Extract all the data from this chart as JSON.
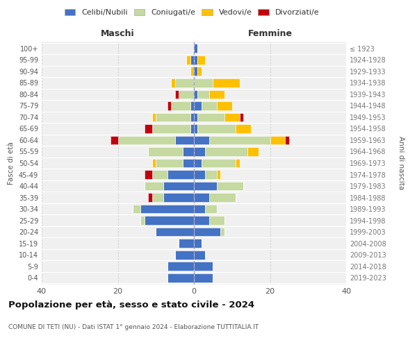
{
  "age_groups": [
    "100+",
    "95-99",
    "90-94",
    "85-89",
    "80-84",
    "75-79",
    "70-74",
    "65-69",
    "60-64",
    "55-59",
    "50-54",
    "45-49",
    "40-44",
    "35-39",
    "30-34",
    "25-29",
    "20-24",
    "15-19",
    "10-14",
    "5-9",
    "0-4"
  ],
  "birth_years": [
    "≤ 1923",
    "1924-1928",
    "1929-1933",
    "1934-1938",
    "1939-1943",
    "1944-1948",
    "1949-1953",
    "1954-1958",
    "1959-1963",
    "1964-1968",
    "1969-1973",
    "1974-1978",
    "1979-1983",
    "1984-1988",
    "1989-1993",
    "1994-1998",
    "1999-2003",
    "2004-2008",
    "2009-2013",
    "2014-2018",
    "2019-2023"
  ],
  "males": {
    "celibe": [
      0,
      1,
      0,
      0,
      0,
      1,
      1,
      1,
      5,
      3,
      3,
      7,
      8,
      8,
      14,
      13,
      10,
      4,
      5,
      7,
      7
    ],
    "coniugato": [
      0,
      0,
      0,
      5,
      4,
      5,
      9,
      10,
      15,
      9,
      7,
      4,
      5,
      3,
      2,
      1,
      0,
      0,
      0,
      0,
      0
    ],
    "vedovo": [
      0,
      1,
      1,
      1,
      0,
      0,
      1,
      0,
      0,
      0,
      1,
      0,
      0,
      0,
      0,
      0,
      0,
      0,
      0,
      0,
      0
    ],
    "divorziato": [
      0,
      0,
      0,
      0,
      1,
      1,
      0,
      2,
      2,
      0,
      0,
      2,
      0,
      1,
      0,
      0,
      0,
      0,
      0,
      0,
      0
    ]
  },
  "females": {
    "nubile": [
      1,
      1,
      1,
      0,
      1,
      2,
      1,
      1,
      4,
      3,
      2,
      3,
      6,
      4,
      3,
      4,
      7,
      2,
      3,
      5,
      5
    ],
    "coniugata": [
      0,
      0,
      0,
      5,
      3,
      4,
      7,
      10,
      16,
      11,
      9,
      3,
      7,
      7,
      3,
      4,
      1,
      0,
      0,
      0,
      0
    ],
    "vedova": [
      0,
      2,
      1,
      7,
      4,
      4,
      4,
      4,
      4,
      3,
      1,
      1,
      0,
      0,
      0,
      0,
      0,
      0,
      0,
      0,
      0
    ],
    "divorziata": [
      0,
      0,
      0,
      0,
      0,
      0,
      1,
      0,
      1,
      0,
      0,
      0,
      0,
      0,
      0,
      0,
      0,
      0,
      0,
      0,
      0
    ]
  },
  "colors": {
    "celibe_nubile": "#4472c4",
    "coniugato_coniugata": "#c5d9a0",
    "vedovo_vedova": "#ffc000",
    "divorziato_divorziata": "#c0000c"
  },
  "title": "Popolazione per età, sesso e stato civile - 2024",
  "subtitle": "COMUNE DI TETI (NU) - Dati ISTAT 1° gennaio 2024 - Elaborazione TUTTITALIA.IT",
  "xlim": 40,
  "xlabel_left": "Maschi",
  "xlabel_right": "Femmine",
  "ylabel_left": "Fasce di età",
  "ylabel_right": "Anni di nascita",
  "legend_labels": [
    "Celibi/Nubili",
    "Coniugati/e",
    "Vedovi/e",
    "Divorziati/e"
  ],
  "background_color": "#ffffff",
  "plot_bg_color": "#f0f0f0",
  "grid_color": "#cccccc"
}
